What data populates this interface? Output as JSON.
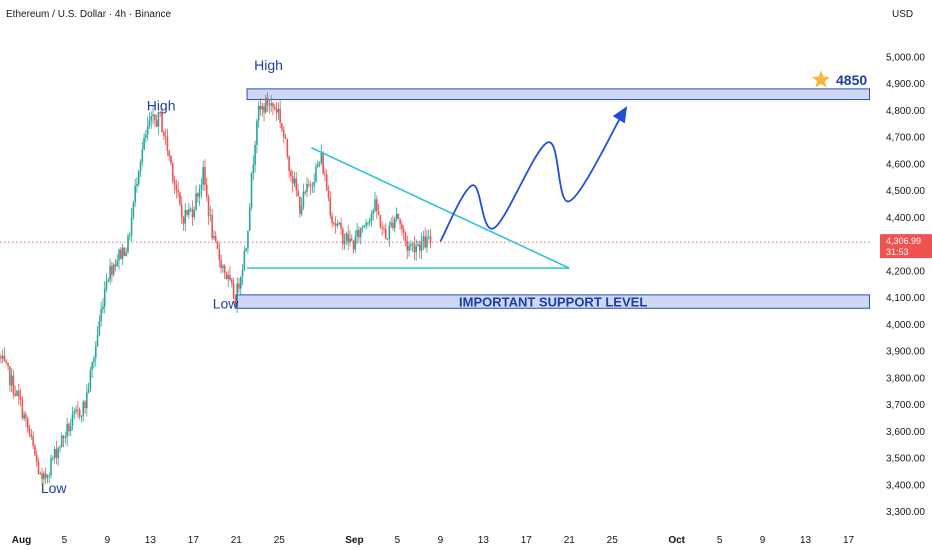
{
  "chart_data": {
    "type": "candlestick",
    "title": "Ethereum / U.S. Dollar · 4h · Binance",
    "currency_label": "USD",
    "ylim": [
      3250,
      5100
    ],
    "y_ticks": [
      3300,
      3400,
      3500,
      3600,
      3700,
      3800,
      3900,
      4000,
      4100,
      4200,
      4300,
      4400,
      4500,
      4600,
      4700,
      4800,
      4900,
      5000
    ],
    "y_tick_labels": [
      "3,300.00",
      "3,400.00",
      "3,500.00",
      "3,600.00",
      "3,700.00",
      "3,800.00",
      "3,900.00",
      "4,000.00",
      "4,100.00",
      "4,200.00",
      "4,300.00",
      "4,400.00",
      "4,500.00",
      "4,600.00",
      "4,700.00",
      "4,800.00",
      "4,900.00",
      "5,000.00"
    ],
    "x_ticks": [
      {
        "label": "Aug",
        "date": "2025-08-01",
        "bold": true
      },
      {
        "label": "5",
        "date": "2025-08-05"
      },
      {
        "label": "9",
        "date": "2025-08-09"
      },
      {
        "label": "13",
        "date": "2025-08-13"
      },
      {
        "label": "17",
        "date": "2025-08-17"
      },
      {
        "label": "21",
        "date": "2025-08-21"
      },
      {
        "label": "25",
        "date": "2025-08-25"
      },
      {
        "label": "Sep",
        "date": "2025-09-01",
        "bold": true
      },
      {
        "label": "5",
        "date": "2025-09-05"
      },
      {
        "label": "9",
        "date": "2025-09-09"
      },
      {
        "label": "13",
        "date": "2025-09-13"
      },
      {
        "label": "17",
        "date": "2025-09-17"
      },
      {
        "label": "21",
        "date": "2025-09-21"
      },
      {
        "label": "25",
        "date": "2025-09-25"
      },
      {
        "label": "Oct",
        "date": "2025-10-01",
        "bold": true
      },
      {
        "label": "5",
        "date": "2025-10-05"
      },
      {
        "label": "9",
        "date": "2025-10-09"
      },
      {
        "label": "13",
        "date": "2025-10-13"
      },
      {
        "label": "17",
        "date": "2025-10-17"
      }
    ],
    "x_range": [
      "2025-07-30",
      "2025-10-19"
    ],
    "current_price": {
      "value": 4306.99,
      "label": "4,306.99",
      "countdown": "31:53"
    },
    "price_path": [
      [
        "2025-07-30",
        3880
      ],
      [
        "2025-07-31",
        3800
      ],
      [
        "2025-08-01",
        3700
      ],
      [
        "2025-08-02",
        3560
      ],
      [
        "2025-08-03",
        3400
      ],
      [
        "2025-08-04",
        3500
      ],
      [
        "2025-08-05",
        3580
      ],
      [
        "2025-08-06",
        3650
      ],
      [
        "2025-08-07",
        3700
      ],
      [
        "2025-08-08",
        3920
      ],
      [
        "2025-08-09",
        4180
      ],
      [
        "2025-08-10",
        4250
      ],
      [
        "2025-08-11",
        4300
      ],
      [
        "2025-08-12",
        4600
      ],
      [
        "2025-08-13",
        4750
      ],
      [
        "2025-08-14",
        4770
      ],
      [
        "2025-08-15",
        4600
      ],
      [
        "2025-08-16",
        4400
      ],
      [
        "2025-08-17",
        4430
      ],
      [
        "2025-08-18",
        4560
      ],
      [
        "2025-08-19",
        4300
      ],
      [
        "2025-08-20",
        4200
      ],
      [
        "2025-08-21",
        4090
      ],
      [
        "2025-08-22",
        4300
      ],
      [
        "2025-08-23",
        4780
      ],
      [
        "2025-08-24",
        4830
      ],
      [
        "2025-08-25",
        4800
      ],
      [
        "2025-08-26",
        4600
      ],
      [
        "2025-08-27",
        4440
      ],
      [
        "2025-08-28",
        4530
      ],
      [
        "2025-08-29",
        4620
      ],
      [
        "2025-08-30",
        4400
      ],
      [
        "2025-08-31",
        4330
      ],
      [
        "2025-09-01",
        4300
      ],
      [
        "2025-09-02",
        4380
      ],
      [
        "2025-09-03",
        4440
      ],
      [
        "2025-09-04",
        4320
      ],
      [
        "2025-09-05",
        4420
      ],
      [
        "2025-09-06",
        4290
      ],
      [
        "2025-09-07",
        4300
      ],
      [
        "2025-09-08",
        4307
      ]
    ],
    "annotations": [
      {
        "text": "High",
        "date": "2025-08-14",
        "price": 4800
      },
      {
        "text": "High",
        "date": "2025-08-24",
        "price": 4950
      },
      {
        "text": "Low",
        "date": "2025-08-20",
        "price": 4060
      },
      {
        "text": "Low",
        "date": "2025-08-04",
        "price": 3370
      }
    ],
    "resistance_zone": {
      "from": "2025-08-22",
      "to": "2025-10-19",
      "low": 4840,
      "high": 4880,
      "label": "4850"
    },
    "support_zone": {
      "from": "2025-08-21",
      "to": "2025-10-19",
      "low": 4060,
      "high": 4110,
      "label": "IMPORTANT SUPPORT LEVEL"
    },
    "triangle": {
      "upper": [
        [
          "2025-08-28",
          4660
        ],
        [
          "2025-09-21",
          4210
        ]
      ],
      "lower": [
        [
          "2025-08-22",
          4210
        ],
        [
          "2025-09-21",
          4210
        ]
      ]
    },
    "projection_path": [
      [
        "2025-09-09",
        4310
      ],
      [
        "2025-09-12",
        4520
      ],
      [
        "2025-09-14",
        4360
      ],
      [
        "2025-09-19",
        4680
      ],
      [
        "2025-09-21",
        4460
      ],
      [
        "2025-09-26",
        4790
      ]
    ],
    "colors": {
      "up": "#26a69a",
      "down": "#ef5350",
      "zone_fill": "#c5d0f2",
      "zone_stroke": "#2b50b4",
      "triangle": "#2ec4d6",
      "projection": "#1f4fd6",
      "label": "#1c3f9e",
      "current_line": "#ef5350",
      "star": "#f6b73c"
    }
  }
}
